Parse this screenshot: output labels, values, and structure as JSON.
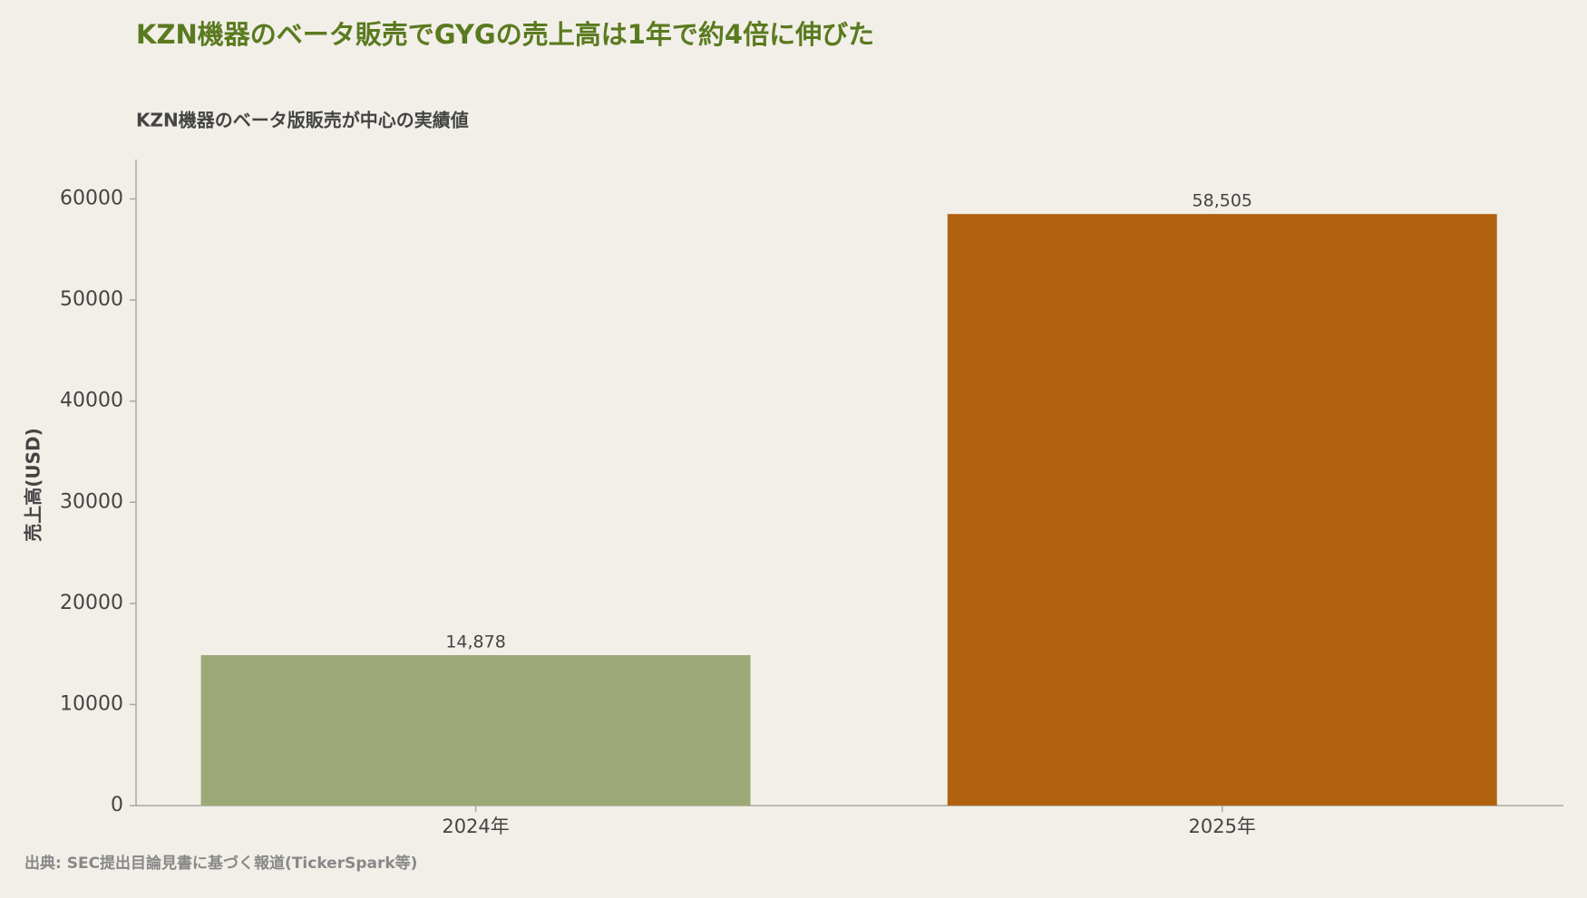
{
  "chart_data": {
    "type": "bar",
    "title": "KZN機器のベータ販売でGYGの売上高は1年で約4倍に伸びた",
    "subtitle": "KZN機器のベータ版販売が中心の実績値",
    "y_label": "売上高(USD)",
    "source": "出典: SEC提出目論見書に基づく報道(TickerSpark等)",
    "categories": [
      "2024年",
      "2025年"
    ],
    "values": [
      14878,
      58505
    ],
    "value_labels": [
      "14,878",
      "58,505"
    ],
    "colors": [
      "#9ca977",
      "#b0620f"
    ],
    "ylim": [
      0,
      63900
    ],
    "yticks": [
      0,
      10000,
      20000,
      30000,
      40000,
      50000,
      60000
    ],
    "grid": false
  }
}
